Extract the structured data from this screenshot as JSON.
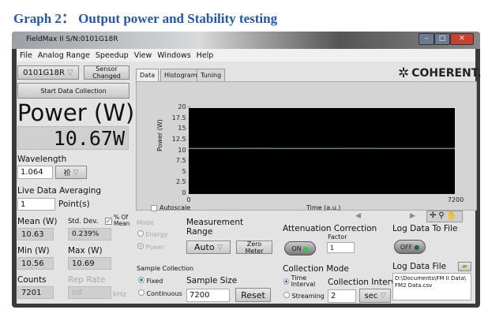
{
  "heading": "Graph 2： Output power and Stability testing",
  "window": {
    "title": "FieldMax II S/N:0101G18R",
    "controls": [
      "–",
      "□",
      "✕"
    ]
  },
  "menu": [
    "File",
    "Analog Range",
    "Speedup",
    "View",
    "Windows",
    "Help"
  ],
  "left": {
    "sensor": "0101G18R",
    "sensor_changed": "Sensor Changed",
    "start": "Start Data Collection",
    "power_label": "Power (W)",
    "power_value": "10.67W",
    "wavelength_label": "Wavelength",
    "wavelength_value": "1.064",
    "wavelength_unit": "祄",
    "averaging_label": "Live Data Averaging",
    "averaging_value": "1",
    "averaging_unit": "Point(s)",
    "mean_label": "Mean (W)",
    "mean_value": "10.63",
    "std_label": "Std. Dev.",
    "std_value": "0.239%",
    "pct_mean_label": "% Of Mean",
    "pct_mean_checked": true,
    "min_label": "Min (W)",
    "min_value": "10.56",
    "max_label": "Max (W)",
    "max_value": "10.69",
    "counts_label": "Counts",
    "counts_value": "7201",
    "rep_label": "Rep Rate",
    "rep_value": "Inf",
    "rep_unit": "kHz"
  },
  "tabs": [
    "Data",
    "Histogram",
    "Tuning"
  ],
  "logo": "COHERENT.",
  "chart_data": {
    "type": "line",
    "ylabel": "Power (W)",
    "xlabel": "Time (a.u.)",
    "xlim": [
      0,
      7200
    ],
    "ylim": [
      0,
      20
    ],
    "yticks": [
      "20",
      "17.5",
      "15",
      "12.5",
      "10",
      "7.5",
      "5",
      "2.5",
      "0"
    ],
    "xticks": [
      "0",
      "7200"
    ],
    "grid": false,
    "line_color": "#7fd86a",
    "x": [
      0,
      900,
      1800,
      2700,
      3600,
      4500,
      5400,
      6300,
      7200
    ],
    "y": [
      10.6,
      10.6,
      10.62,
      10.6,
      10.6,
      10.61,
      10.6,
      10.6,
      10.6
    ]
  },
  "autoscale": "Autoscale",
  "mode": {
    "label": "Mode",
    "options": [
      "Energy",
      "Power"
    ],
    "selected": "Power"
  },
  "range": {
    "label1": "Measurement",
    "label2": "Range",
    "value": "Auto",
    "zero": "Zero Meter"
  },
  "sample": {
    "label": "Sample Collection",
    "options": [
      "Fixed",
      "Continuous"
    ],
    "selected": "Fixed",
    "size_label": "Sample Size",
    "size_value": "7200",
    "reset": "Reset"
  },
  "attenuation": {
    "label": "Attenuation Correction",
    "factor_label": "Factor",
    "factor_value": "1",
    "toggle": "ON"
  },
  "collection": {
    "label": "Collection Mode",
    "opt1": "Time Interval",
    "opt2": "Streaming",
    "selected": "Time Interval",
    "interval_label": "Collection Interval",
    "interval_value": "2",
    "interval_unit": "sec"
  },
  "log": {
    "label": "Log Data To File",
    "toggle": "OFF",
    "file_label": "Log Data File",
    "file_path": "D:\\Documents\\FM II Data\\ FM2 Data.csv"
  }
}
